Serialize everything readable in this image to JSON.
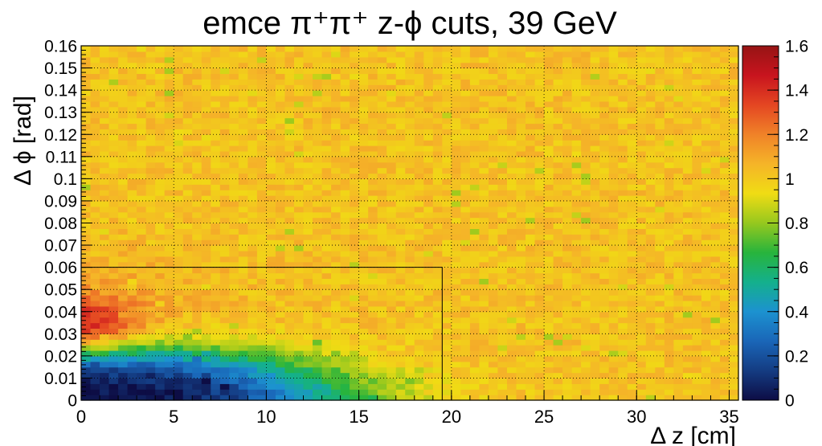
{
  "chart_data": {
    "type": "heatmap",
    "title": "emce π⁺π⁺  z-ϕ cuts, 39 GeV",
    "xlabel": "Δ z [cm]",
    "ylabel": "Δ ϕ [rad]",
    "xlim": [
      0,
      35.5
    ],
    "ylim": [
      0,
      0.16
    ],
    "zlim": [
      0,
      1.6
    ],
    "x_ticks": [
      "0",
      "5",
      "10",
      "15",
      "20",
      "25",
      "30",
      "35"
    ],
    "y_ticks": [
      "0",
      "0.01",
      "0.02",
      "0.03",
      "0.04",
      "0.05",
      "0.06",
      "0.07",
      "0.08",
      "0.09",
      "0.1",
      "0.11",
      "0.12",
      "0.13",
      "0.14",
      "0.15",
      "0.16"
    ],
    "z_ticks": [
      "0",
      "0.2",
      "0.4",
      "0.6",
      "0.8",
      "1",
      "1.2",
      "1.4",
      "1.6"
    ],
    "grid": true,
    "colormap": [
      "#0d0d45",
      "#143c82",
      "#1a66b8",
      "#1c92d0",
      "#14b08c",
      "#28b43c",
      "#96c81e",
      "#f0dc14",
      "#f5b428",
      "#f08228",
      "#e44622",
      "#c8141e",
      "#961414"
    ],
    "cut_box": {
      "x": [
        0,
        19.5
      ],
      "y": [
        0,
        0.06
      ]
    },
    "binning": {
      "nx": 71,
      "ny": 64,
      "dx": 0.5,
      "dy": 0.0025
    },
    "description_of_values": "ratio near 0 (dark blue) close to origin rising through green to ~1 (yellow-orange) far from origin; enhancement ~1.2-1.4 (red) at small dz, dphi 0.02-0.05"
  }
}
